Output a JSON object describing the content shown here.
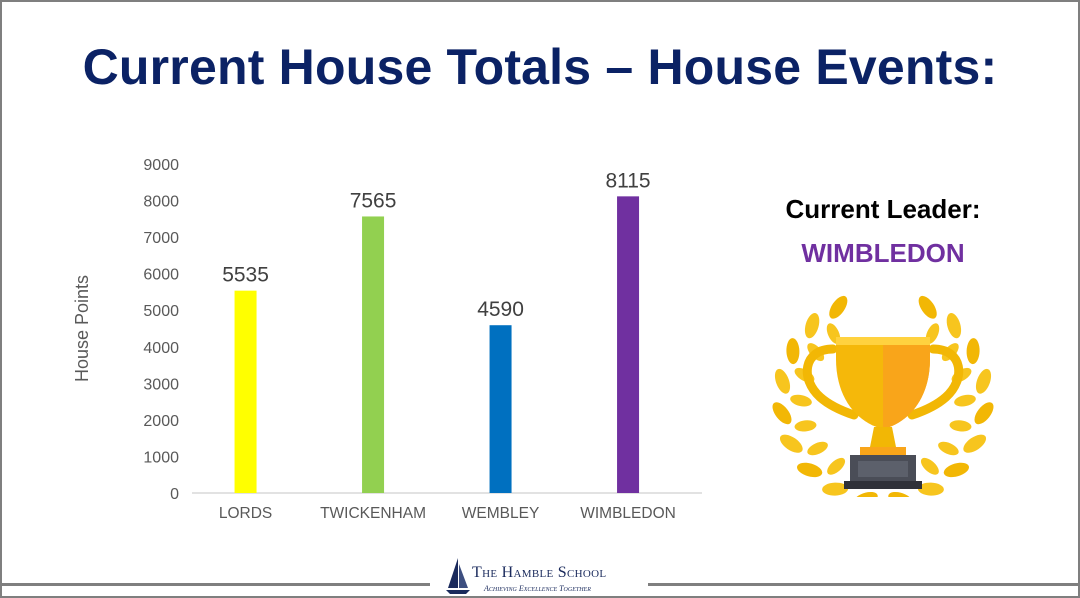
{
  "slide": {
    "title": "Current House Totals – House Events:",
    "leader_heading": "Current Leader:",
    "leader_name": "WIMBLEDON",
    "trophy_icon": "trophy-laurel-icon",
    "footer": {
      "school_name": "The Hamble School",
      "motto": "Achieving Excellence Together",
      "logo_icon": "sailboat-icon"
    }
  },
  "chart_data": {
    "type": "bar",
    "categories": [
      "LORDS",
      "TWICKENHAM",
      "WEMBLEY",
      "WIMBLEDON"
    ],
    "values": [
      5535,
      7565,
      4590,
      8115
    ],
    "colors": [
      "#ffff00",
      "#92d050",
      "#0070c0",
      "#7030a0"
    ],
    "ylabel": "House Points",
    "xlabel": "",
    "ylim": [
      0,
      9000
    ],
    "yticks": [
      0,
      1000,
      2000,
      3000,
      4000,
      5000,
      6000,
      7000,
      8000,
      9000
    ],
    "data_labels": true,
    "grid": false,
    "legend": "none"
  },
  "colors": {
    "title": "#0b2265",
    "leader_name": "#7030a0",
    "border": "#7f7f7f"
  }
}
